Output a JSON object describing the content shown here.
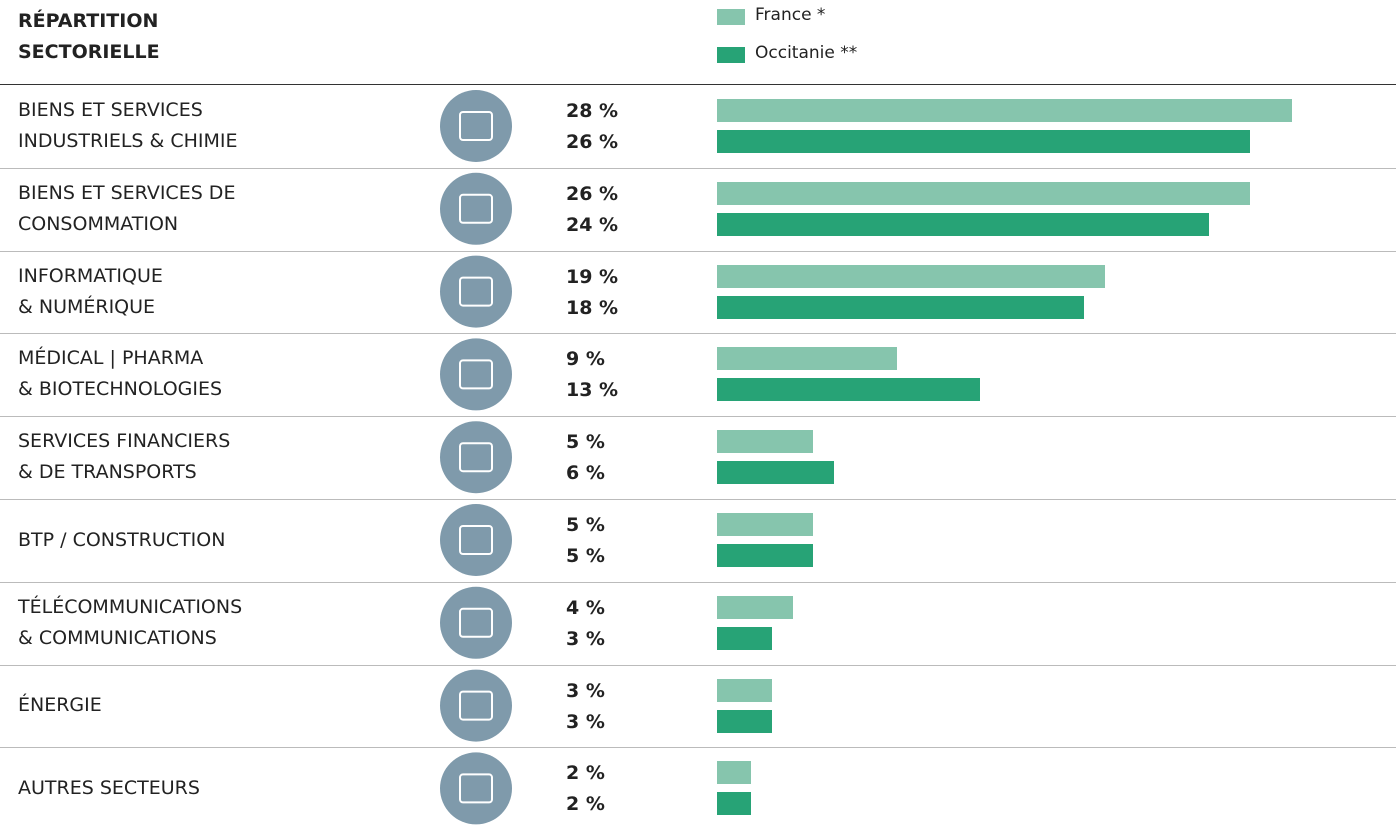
{
  "chart_data": {
    "type": "bar",
    "orientation": "horizontal",
    "title": "RÉPARTITION\nSECTORIELLE",
    "categories": [
      "BIENS ET SERVICES\nINDUSTRIELS & CHIMIE",
      "BIENS ET SERVICES DE\nCONSOMMATION",
      "INFORMATIQUE\n& NUMÉRIQUE",
      "MÉDICAL | PHARMA\n&  BIOTECHNOLOGIES",
      "SERVICES FINANCIERS\n& DE TRANSPORTS",
      "BTP / CONSTRUCTION",
      "TÉLÉCOMMUNICATIONS\n& COMMUNICATIONS",
      "ÉNERGIE",
      "AUTRES SECTEURS"
    ],
    "series": [
      {
        "name": "France *",
        "color": "#86c5ad",
        "values": [
          28,
          26,
          19,
          9,
          5,
          5,
          4,
          3,
          2
        ],
        "value_labels": [
          "28 %",
          "26 %",
          "19 %",
          "9 %",
          "5 %",
          "5 %",
          "4 %",
          "3 %",
          "2 %"
        ]
      },
      {
        "name": "Occitanie **",
        "color": "#27a376",
        "values": [
          26,
          24,
          18,
          13,
          6,
          5,
          3,
          3,
          2
        ],
        "value_labels": [
          "26 %",
          "24 %",
          "18 %",
          "13 %",
          "6 %",
          "5 %",
          "3 %",
          "3 %",
          "2 %"
        ]
      }
    ]
  }
}
